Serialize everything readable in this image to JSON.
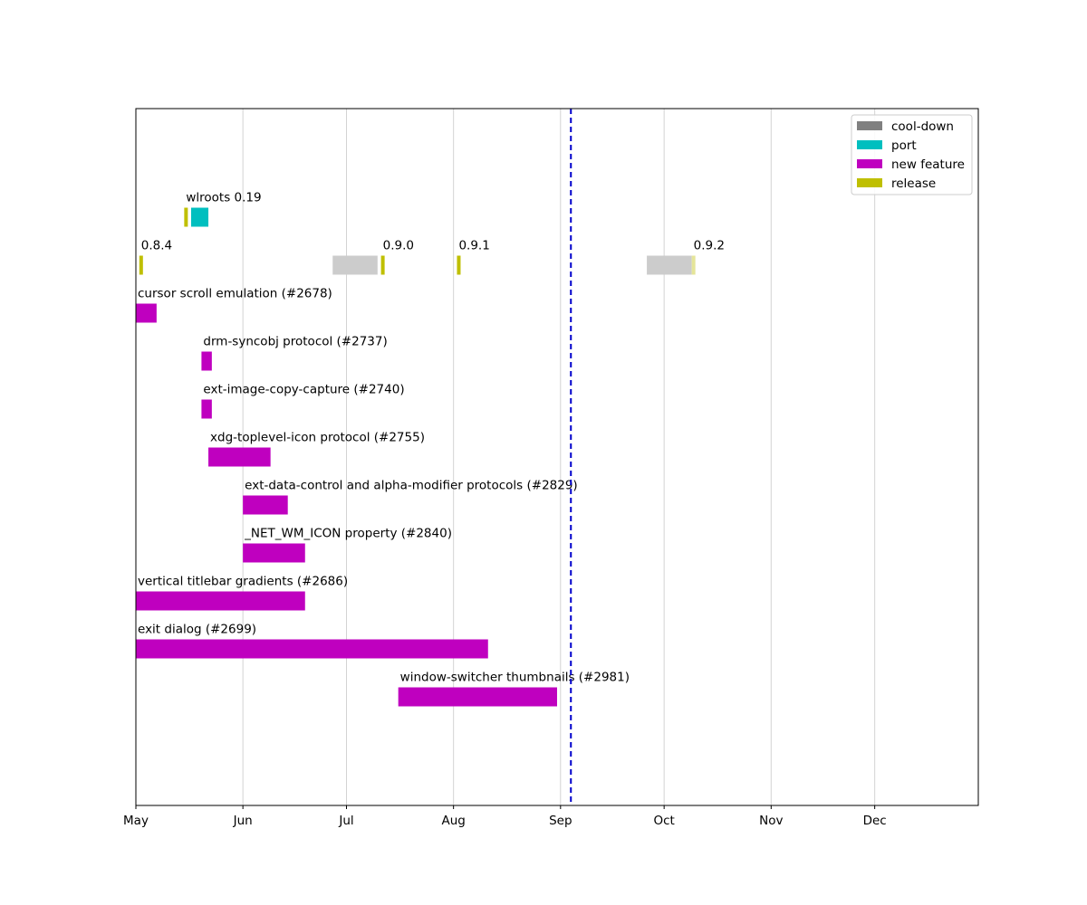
{
  "chart_data": {
    "type": "gantt",
    "title": "",
    "xlabel": "",
    "ylabel": "",
    "x_range": [
      "2024-05-01",
      "2024-12-31"
    ],
    "grid": "vertical",
    "today_marker": "2024-09-04",
    "ticks": [
      {
        "label": "May",
        "date": "2024-05-01"
      },
      {
        "label": "Jun",
        "date": "2024-06-01"
      },
      {
        "label": "Jul",
        "date": "2024-07-01"
      },
      {
        "label": "Aug",
        "date": "2024-08-01"
      },
      {
        "label": "Sep",
        "date": "2024-09-01"
      },
      {
        "label": "Oct",
        "date": "2024-10-01"
      },
      {
        "label": "Nov",
        "date": "2024-11-01"
      },
      {
        "label": "Dec",
        "date": "2024-12-01"
      }
    ],
    "categories": {
      "cooldown": {
        "name": "cool-down",
        "color": "#808080"
      },
      "port": {
        "name": "port",
        "color": "#00bfbf"
      },
      "feature": {
        "name": "new feature",
        "color": "#bf00bf"
      },
      "release": {
        "name": "release",
        "color": "#bfbf00"
      }
    },
    "legend": {
      "placement": "top-right",
      "items": [
        "cooldown",
        "port",
        "feature",
        "release"
      ]
    },
    "rows": [
      {
        "label": "wlroots 0.19",
        "segments": [
          {
            "cat": "release",
            "start": "2024-05-15",
            "end": "2024-05-16"
          },
          {
            "cat": "port",
            "start": "2024-05-17",
            "end": "2024-05-22"
          }
        ]
      },
      {
        "label": "",
        "segments": [
          {
            "cat": "release",
            "start": "2024-05-02",
            "end": "2024-05-03",
            "label": "0.8.4"
          },
          {
            "cat": "cooldown",
            "start": "2024-06-27",
            "end": "2024-07-10",
            "faded": true
          },
          {
            "cat": "release",
            "start": "2024-07-11",
            "end": "2024-07-12",
            "label": "0.9.0"
          },
          {
            "cat": "release",
            "start": "2024-08-02",
            "end": "2024-08-03",
            "label": "0.9.1"
          },
          {
            "cat": "cooldown",
            "start": "2024-09-26",
            "end": "2024-10-09",
            "faded": true
          },
          {
            "cat": "release",
            "start": "2024-10-09",
            "end": "2024-10-10",
            "label": "0.9.2",
            "faded": true
          }
        ]
      },
      {
        "label": "cursor scroll emulation (#2678)",
        "segments": [
          {
            "cat": "feature",
            "start": "2024-05-01",
            "end": "2024-05-07"
          }
        ]
      },
      {
        "label": "drm-syncobj protocol (#2737)",
        "segments": [
          {
            "cat": "feature",
            "start": "2024-05-20",
            "end": "2024-05-23"
          }
        ]
      },
      {
        "label": "ext-image-copy-capture (#2740)",
        "segments": [
          {
            "cat": "feature",
            "start": "2024-05-20",
            "end": "2024-05-23"
          }
        ]
      },
      {
        "label": "xdg-toplevel-icon protocol (#2755)",
        "segments": [
          {
            "cat": "feature",
            "start": "2024-05-22",
            "end": "2024-06-09"
          }
        ]
      },
      {
        "label": "ext-data-control and alpha-modifier protocols (#2829)",
        "segments": [
          {
            "cat": "feature",
            "start": "2024-06-01",
            "end": "2024-06-14"
          }
        ]
      },
      {
        "label": "_NET_WM_ICON property (#2840)",
        "segments": [
          {
            "cat": "feature",
            "start": "2024-06-01",
            "end": "2024-06-19"
          }
        ]
      },
      {
        "label": "vertical titlebar gradients (#2686)",
        "segments": [
          {
            "cat": "feature",
            "start": "2024-05-01",
            "end": "2024-06-19"
          }
        ]
      },
      {
        "label": "exit dialog (#2699)",
        "segments": [
          {
            "cat": "feature",
            "start": "2024-05-01",
            "end": "2024-08-11"
          }
        ]
      },
      {
        "label": "window-switcher thumbnails (#2981)",
        "segments": [
          {
            "cat": "feature",
            "start": "2024-07-16",
            "end": "2024-08-31"
          }
        ]
      }
    ]
  }
}
